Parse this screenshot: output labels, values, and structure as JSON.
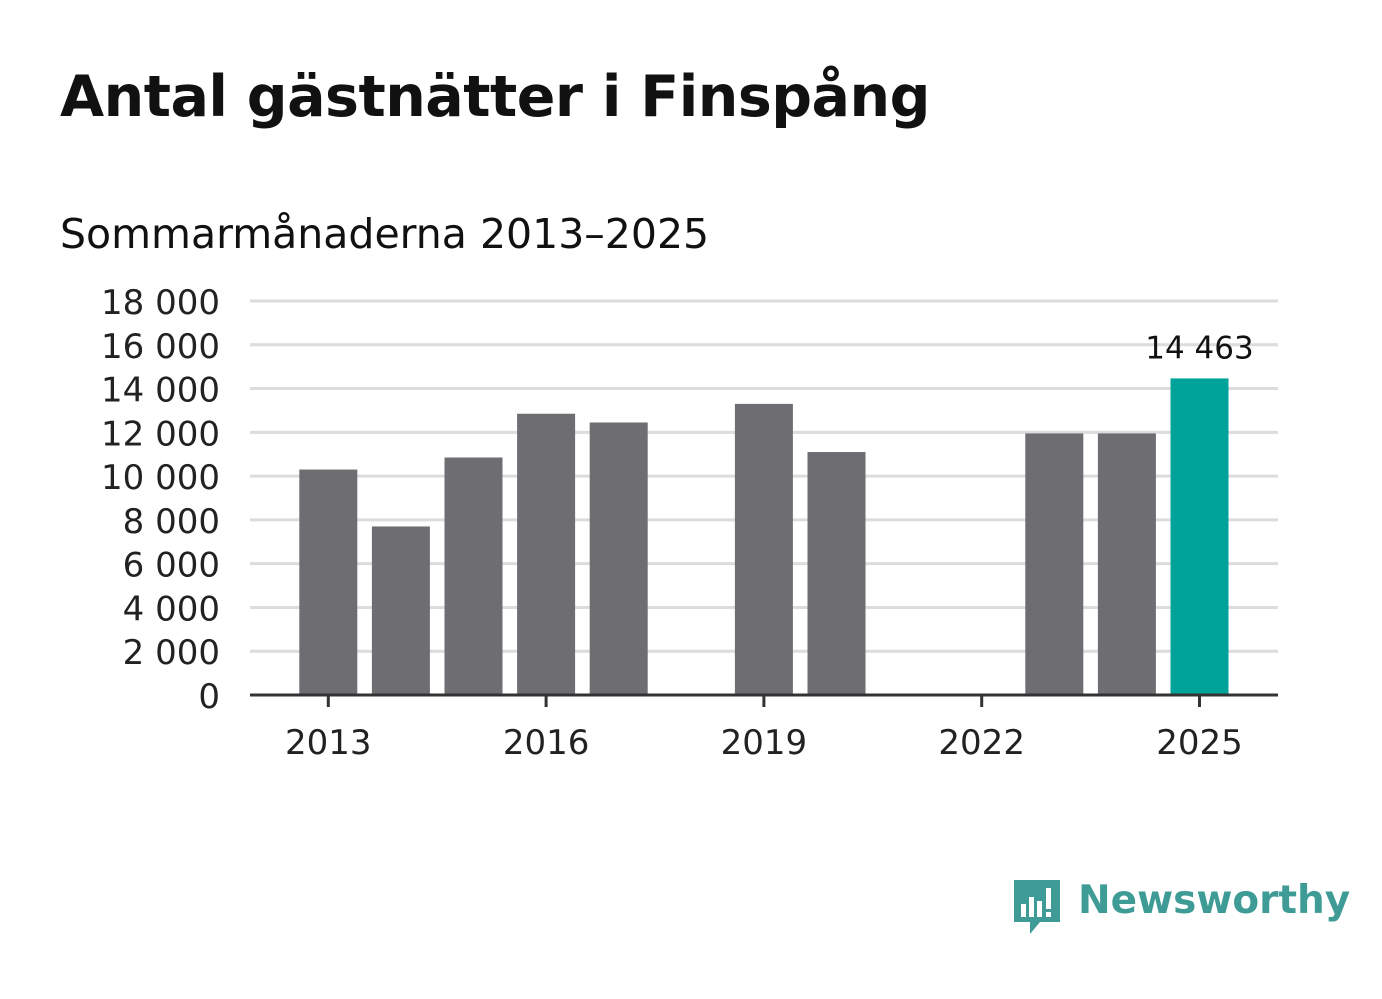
{
  "header": {
    "title": "Antal gästnätter i Finspång",
    "subtitle": "Sommarmånaderna 2013–2025"
  },
  "brand": {
    "name": "Newsworthy",
    "icon": "newsworthy-logo-icon",
    "color": "#3f9b96"
  },
  "chart_data": {
    "type": "bar",
    "categories": [
      "2013",
      "2014",
      "2015",
      "2016",
      "2017",
      "2018",
      "2019",
      "2020",
      "2021",
      "2022",
      "2023",
      "2024",
      "2025"
    ],
    "values": [
      10300,
      7700,
      10850,
      12850,
      12450,
      null,
      13300,
      11100,
      null,
      null,
      11950,
      11950,
      14463
    ],
    "x_tick_labels": [
      "2013",
      "2016",
      "2019",
      "2022",
      "2025"
    ],
    "y_tick_labels": [
      "0",
      "2 000",
      "4 000",
      "6 000",
      "8 000",
      "10 000",
      "12 000",
      "14 000",
      "16 000",
      "18 000"
    ],
    "ylim": [
      0,
      18000
    ],
    "grid": true,
    "highlight": {
      "category": "2025",
      "label": "14 463"
    },
    "colors": {
      "bar": "#6e6d72",
      "highlight": "#00a39a",
      "grid": "#dcdcdc",
      "axis": "#333333"
    },
    "xlabel": "",
    "ylabel": ""
  }
}
